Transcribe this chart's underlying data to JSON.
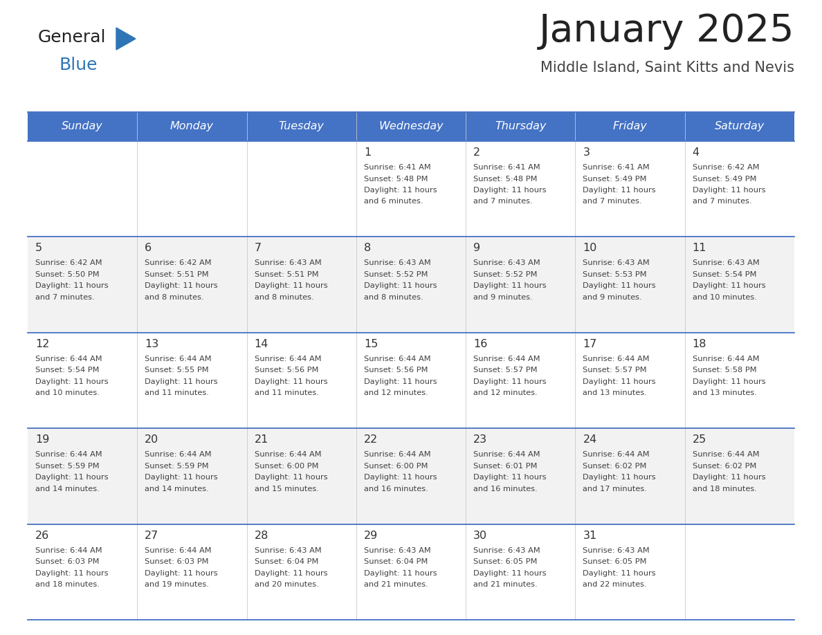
{
  "title": "January 2025",
  "subtitle": "Middle Island, Saint Kitts and Nevis",
  "header_bg_color": "#4472C4",
  "header_text_color": "#FFFFFF",
  "days_of_week": [
    "Sunday",
    "Monday",
    "Tuesday",
    "Wednesday",
    "Thursday",
    "Friday",
    "Saturday"
  ],
  "row_bg_colors": [
    "#FFFFFF",
    "#F2F2F2",
    "#FFFFFF",
    "#F2F2F2",
    "#FFFFFF"
  ],
  "cell_text_color": "#404040",
  "day_num_color": "#333333",
  "border_color": "#4472C4",
  "border_color_light": "#A0A0C0",
  "title_color": "#222222",
  "subtitle_color": "#444444",
  "logo_general_color": "#222222",
  "logo_blue_color": "#2E75B6",
  "calendar_data": [
    [
      {
        "day": null,
        "sunrise": null,
        "sunset": null,
        "daylight": null
      },
      {
        "day": null,
        "sunrise": null,
        "sunset": null,
        "daylight": null
      },
      {
        "day": null,
        "sunrise": null,
        "sunset": null,
        "daylight": null
      },
      {
        "day": 1,
        "sunrise": "6:41 AM",
        "sunset": "5:48 PM",
        "daylight_line1": "Daylight: 11 hours",
        "daylight_line2": "and 6 minutes."
      },
      {
        "day": 2,
        "sunrise": "6:41 AM",
        "sunset": "5:48 PM",
        "daylight_line1": "Daylight: 11 hours",
        "daylight_line2": "and 7 minutes."
      },
      {
        "day": 3,
        "sunrise": "6:41 AM",
        "sunset": "5:49 PM",
        "daylight_line1": "Daylight: 11 hours",
        "daylight_line2": "and 7 minutes."
      },
      {
        "day": 4,
        "sunrise": "6:42 AM",
        "sunset": "5:49 PM",
        "daylight_line1": "Daylight: 11 hours",
        "daylight_line2": "and 7 minutes."
      }
    ],
    [
      {
        "day": 5,
        "sunrise": "6:42 AM",
        "sunset": "5:50 PM",
        "daylight_line1": "Daylight: 11 hours",
        "daylight_line2": "and 7 minutes."
      },
      {
        "day": 6,
        "sunrise": "6:42 AM",
        "sunset": "5:51 PM",
        "daylight_line1": "Daylight: 11 hours",
        "daylight_line2": "and 8 minutes."
      },
      {
        "day": 7,
        "sunrise": "6:43 AM",
        "sunset": "5:51 PM",
        "daylight_line1": "Daylight: 11 hours",
        "daylight_line2": "and 8 minutes."
      },
      {
        "day": 8,
        "sunrise": "6:43 AM",
        "sunset": "5:52 PM",
        "daylight_line1": "Daylight: 11 hours",
        "daylight_line2": "and 8 minutes."
      },
      {
        "day": 9,
        "sunrise": "6:43 AM",
        "sunset": "5:52 PM",
        "daylight_line1": "Daylight: 11 hours",
        "daylight_line2": "and 9 minutes."
      },
      {
        "day": 10,
        "sunrise": "6:43 AM",
        "sunset": "5:53 PM",
        "daylight_line1": "Daylight: 11 hours",
        "daylight_line2": "and 9 minutes."
      },
      {
        "day": 11,
        "sunrise": "6:43 AM",
        "sunset": "5:54 PM",
        "daylight_line1": "Daylight: 11 hours",
        "daylight_line2": "and 10 minutes."
      }
    ],
    [
      {
        "day": 12,
        "sunrise": "6:44 AM",
        "sunset": "5:54 PM",
        "daylight_line1": "Daylight: 11 hours",
        "daylight_line2": "and 10 minutes."
      },
      {
        "day": 13,
        "sunrise": "6:44 AM",
        "sunset": "5:55 PM",
        "daylight_line1": "Daylight: 11 hours",
        "daylight_line2": "and 11 minutes."
      },
      {
        "day": 14,
        "sunrise": "6:44 AM",
        "sunset": "5:56 PM",
        "daylight_line1": "Daylight: 11 hours",
        "daylight_line2": "and 11 minutes."
      },
      {
        "day": 15,
        "sunrise": "6:44 AM",
        "sunset": "5:56 PM",
        "daylight_line1": "Daylight: 11 hours",
        "daylight_line2": "and 12 minutes."
      },
      {
        "day": 16,
        "sunrise": "6:44 AM",
        "sunset": "5:57 PM",
        "daylight_line1": "Daylight: 11 hours",
        "daylight_line2": "and 12 minutes."
      },
      {
        "day": 17,
        "sunrise": "6:44 AM",
        "sunset": "5:57 PM",
        "daylight_line1": "Daylight: 11 hours",
        "daylight_line2": "and 13 minutes."
      },
      {
        "day": 18,
        "sunrise": "6:44 AM",
        "sunset": "5:58 PM",
        "daylight_line1": "Daylight: 11 hours",
        "daylight_line2": "and 13 minutes."
      }
    ],
    [
      {
        "day": 19,
        "sunrise": "6:44 AM",
        "sunset": "5:59 PM",
        "daylight_line1": "Daylight: 11 hours",
        "daylight_line2": "and 14 minutes."
      },
      {
        "day": 20,
        "sunrise": "6:44 AM",
        "sunset": "5:59 PM",
        "daylight_line1": "Daylight: 11 hours",
        "daylight_line2": "and 14 minutes."
      },
      {
        "day": 21,
        "sunrise": "6:44 AM",
        "sunset": "6:00 PM",
        "daylight_line1": "Daylight: 11 hours",
        "daylight_line2": "and 15 minutes."
      },
      {
        "day": 22,
        "sunrise": "6:44 AM",
        "sunset": "6:00 PM",
        "daylight_line1": "Daylight: 11 hours",
        "daylight_line2": "and 16 minutes."
      },
      {
        "day": 23,
        "sunrise": "6:44 AM",
        "sunset": "6:01 PM",
        "daylight_line1": "Daylight: 11 hours",
        "daylight_line2": "and 16 minutes."
      },
      {
        "day": 24,
        "sunrise": "6:44 AM",
        "sunset": "6:02 PM",
        "daylight_line1": "Daylight: 11 hours",
        "daylight_line2": "and 17 minutes."
      },
      {
        "day": 25,
        "sunrise": "6:44 AM",
        "sunset": "6:02 PM",
        "daylight_line1": "Daylight: 11 hours",
        "daylight_line2": "and 18 minutes."
      }
    ],
    [
      {
        "day": 26,
        "sunrise": "6:44 AM",
        "sunset": "6:03 PM",
        "daylight_line1": "Daylight: 11 hours",
        "daylight_line2": "and 18 minutes."
      },
      {
        "day": 27,
        "sunrise": "6:44 AM",
        "sunset": "6:03 PM",
        "daylight_line1": "Daylight: 11 hours",
        "daylight_line2": "and 19 minutes."
      },
      {
        "day": 28,
        "sunrise": "6:43 AM",
        "sunset": "6:04 PM",
        "daylight_line1": "Daylight: 11 hours",
        "daylight_line2": "and 20 minutes."
      },
      {
        "day": 29,
        "sunrise": "6:43 AM",
        "sunset": "6:04 PM",
        "daylight_line1": "Daylight: 11 hours",
        "daylight_line2": "and 21 minutes."
      },
      {
        "day": 30,
        "sunrise": "6:43 AM",
        "sunset": "6:05 PM",
        "daylight_line1": "Daylight: 11 hours",
        "daylight_line2": "and 21 minutes."
      },
      {
        "day": 31,
        "sunrise": "6:43 AM",
        "sunset": "6:05 PM",
        "daylight_line1": "Daylight: 11 hours",
        "daylight_line2": "and 22 minutes."
      },
      {
        "day": null,
        "sunrise": null,
        "sunset": null,
        "daylight_line1": null,
        "daylight_line2": null
      }
    ]
  ]
}
